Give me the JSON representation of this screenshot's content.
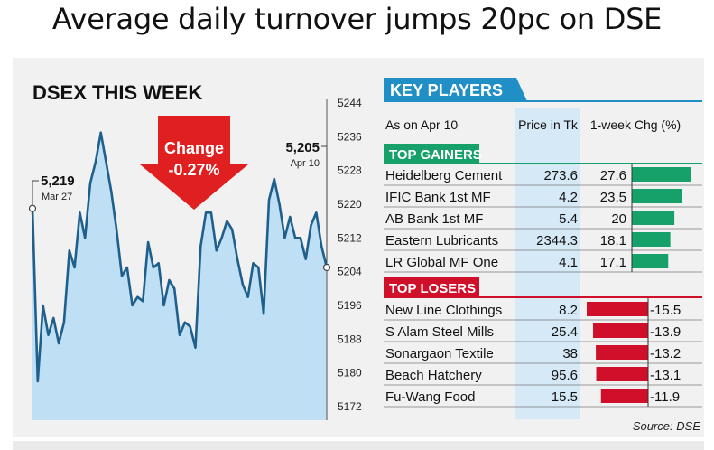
{
  "headline": "Average daily turnover jumps 20pc on DSE",
  "chart_data": [
    {
      "type": "line",
      "title": "DSEX THIS WEEK",
      "ylim": [
        5172,
        5244
      ],
      "y_ticks": [
        5244,
        5236,
        5228,
        5220,
        5212,
        5204,
        5196,
        5188,
        5180,
        5172
      ],
      "grid": false,
      "series": [
        {
          "values": [
            5219,
            5178,
            5196,
            5189,
            5193,
            5187,
            5192,
            5209,
            5205,
            5218,
            5212,
            5225,
            5230,
            5237,
            5230,
            5223,
            5214,
            5203,
            5205,
            5196,
            5198,
            5197,
            5211,
            5205,
            5206,
            5196,
            5202,
            5200,
            5189,
            5192,
            5191,
            5186,
            5210,
            5218,
            5218,
            5209,
            5212,
            5216,
            5214,
            5207,
            5201,
            5198,
            5206,
            5205,
            5194,
            5221,
            5226,
            5220,
            5212,
            5217,
            5212,
            5212,
            5207,
            5215,
            5218,
            5210,
            5205
          ]
        }
      ],
      "annotations": [
        {
          "value": "5,219",
          "date": "Mar 27"
        },
        {
          "value": "5,205",
          "date": "Apr 10"
        }
      ],
      "change_label": "Change",
      "change_value": "-0.27%"
    },
    {
      "type": "table",
      "title": "KEY PLAYERS",
      "header": {
        "as_on": "As on Apr 10",
        "price": "Price in Tk",
        "chg": "1-week Chg (%)"
      },
      "gainers_label": "TOP GAINERS",
      "losers_label": "TOP LOSERS",
      "gainers": [
        {
          "name": "Heidelberg Cement",
          "price": "273.6",
          "chg": "27.6",
          "value": 27.6
        },
        {
          "name": "IFIC Bank 1st MF",
          "price": "4.2",
          "chg": "23.5",
          "value": 23.5
        },
        {
          "name": "AB Bank 1st MF",
          "price": "5.4",
          "chg": "20",
          "value": 20
        },
        {
          "name": "Eastern Lubricants",
          "price": "2344.3",
          "chg": "18.1",
          "value": 18.1
        },
        {
          "name": "LR Global MF One",
          "price": "4.1",
          "chg": "17.1",
          "value": 17.1
        }
      ],
      "losers": [
        {
          "name": "New Line Clothings",
          "price": "8.2",
          "chg": "-15.5",
          "value": -15.5
        },
        {
          "name": "S Alam Steel Mills",
          "price": "25.4",
          "chg": "-13.9",
          "value": -13.9
        },
        {
          "name": "Sonargaon Textile",
          "price": "38",
          "chg": "-13.2",
          "value": -13.2
        },
        {
          "name": "Beach Hatchery",
          "price": "95.6",
          "chg": "-13.1",
          "value": -13.1
        },
        {
          "name": "Fu-Wang Food",
          "price": "15.5",
          "chg": "-11.9",
          "value": -11.9
        }
      ],
      "source": "Source: DSE"
    }
  ],
  "colors": {
    "line": "#1f5f8b",
    "area": "#bfdff5",
    "up": "#16a06a",
    "down": "#d0102a",
    "header_blue": "#1f8fc6",
    "price_col": "#d6e9f7",
    "arrow": "#e02020"
  }
}
